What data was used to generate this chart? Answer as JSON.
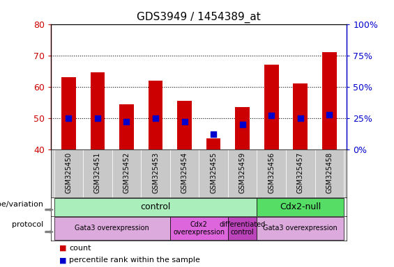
{
  "title": "GDS3949 / 1454389_at",
  "samples": [
    "GSM325450",
    "GSM325451",
    "GSM325452",
    "GSM325453",
    "GSM325454",
    "GSM325455",
    "GSM325459",
    "GSM325456",
    "GSM325457",
    "GSM325458"
  ],
  "counts": [
    63.0,
    64.5,
    54.5,
    62.0,
    55.5,
    43.5,
    53.5,
    67.0,
    61.0,
    71.0
  ],
  "percentile_ranks": [
    25,
    25,
    22,
    25,
    22,
    12,
    20,
    27,
    25,
    28
  ],
  "base_value": 40,
  "ylim_left": [
    40,
    80
  ],
  "ylim_right": [
    0,
    100
  ],
  "right_ticks": [
    0,
    25,
    50,
    75,
    100
  ],
  "right_tick_labels": [
    "0%",
    "25%",
    "50%",
    "75%",
    "100%"
  ],
  "left_ticks": [
    40,
    50,
    60,
    70,
    80
  ],
  "bar_color": "#cc0000",
  "dot_color": "#0000cc",
  "plot_bg": "#ffffff",
  "tick_bg": "#d0d0d0",
  "genotype_groups": [
    {
      "label": "control",
      "start": 0,
      "end": 7,
      "color": "#aaeebb"
    },
    {
      "label": "Cdx2-null",
      "start": 7,
      "end": 10,
      "color": "#55dd66"
    }
  ],
  "protocol_groups": [
    {
      "label": "Gata3 overexpression",
      "start": 0,
      "end": 4,
      "color": "#ddaadd"
    },
    {
      "label": "Cdx2\noverexpression",
      "start": 4,
      "end": 6,
      "color": "#dd66dd"
    },
    {
      "label": "differentiated\ncontrol",
      "start": 6,
      "end": 7,
      "color": "#bb44bb"
    },
    {
      "label": "Gata3 overexpression",
      "start": 7,
      "end": 10,
      "color": "#ddaadd"
    }
  ],
  "legend_count_color": "#cc0000",
  "legend_dot_color": "#0000cc",
  "left_border_color": "#cc0000",
  "right_border_color": "#0000cc",
  "grid_dotted_levels": [
    50,
    60,
    70
  ],
  "dot_size": 30
}
